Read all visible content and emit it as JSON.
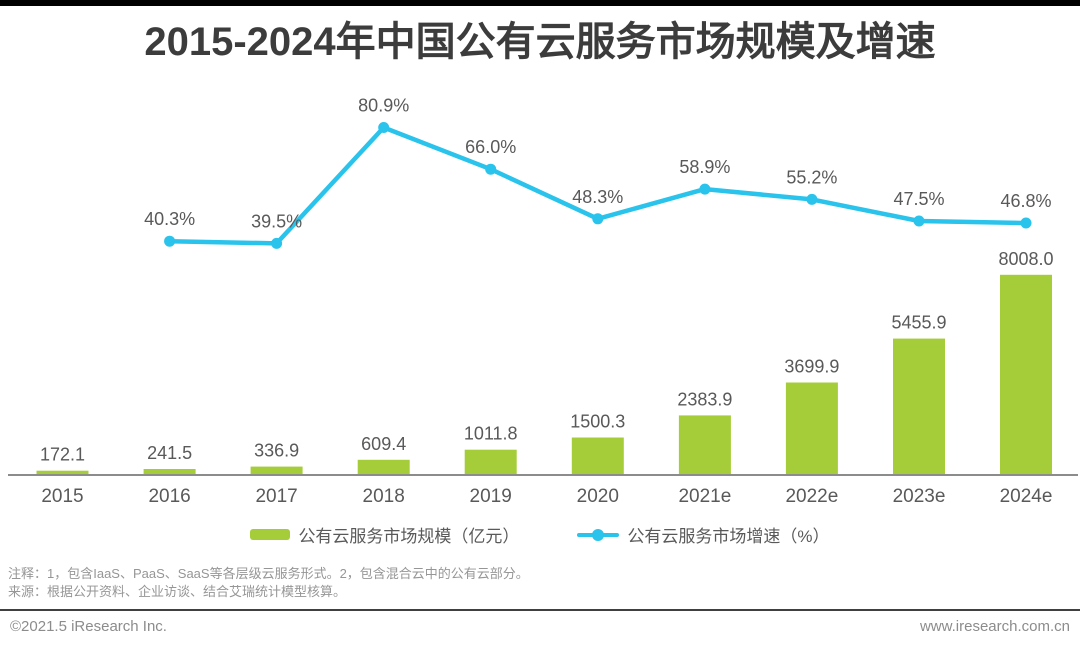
{
  "page": {
    "title": "2015-2024年中国公有云服务市场规模及增速",
    "note_line1": "注释：1，包含IaaS、PaaS、SaaS等各层级云服务形式。2，包含混合云中的公有云部分。",
    "note_line2": "来源：根据公开资料、企业访谈、结合艾瑞统计模型核算。",
    "footer_left": "©2021.5 iResearch Inc.",
    "footer_right": "www.iresearch.com.cn"
  },
  "colors": {
    "bar": "#a5cd39",
    "line": "#29c3ec",
    "title_text": "#3c3c3c",
    "label_text": "#595959",
    "axis_line": "#8c8c8c",
    "note_text": "#969696",
    "footer_text": "#8c8c8c",
    "divider": "#404040",
    "top_bar": "#000000",
    "background": "#ffffff"
  },
  "chart_data": {
    "type": "combo",
    "title": "2015-2024年中国公有云服务市场规模及增速",
    "categories": [
      "2015",
      "2016",
      "2017",
      "2018",
      "2019",
      "2020",
      "2021e",
      "2022e",
      "2023e",
      "2024e"
    ],
    "series": [
      {
        "name": "公有云服务市场规模（亿元）",
        "type": "bar",
        "color": "#a5cd39",
        "values": [
          172.1,
          241.5,
          336.9,
          609.4,
          1011.8,
          1500.3,
          2383.9,
          3699.9,
          5455.9,
          8008.0
        ]
      },
      {
        "name": "公有云服务市场增速（%）",
        "type": "line",
        "color": "#29c3ec",
        "unit": "%",
        "start_category_index": 1,
        "values": [
          40.3,
          39.5,
          80.9,
          66.0,
          48.3,
          58.9,
          55.2,
          47.5,
          46.8
        ]
      }
    ],
    "legend_position": "bottom",
    "grid": false,
    "value_labels": true,
    "x_axis_line": true
  }
}
